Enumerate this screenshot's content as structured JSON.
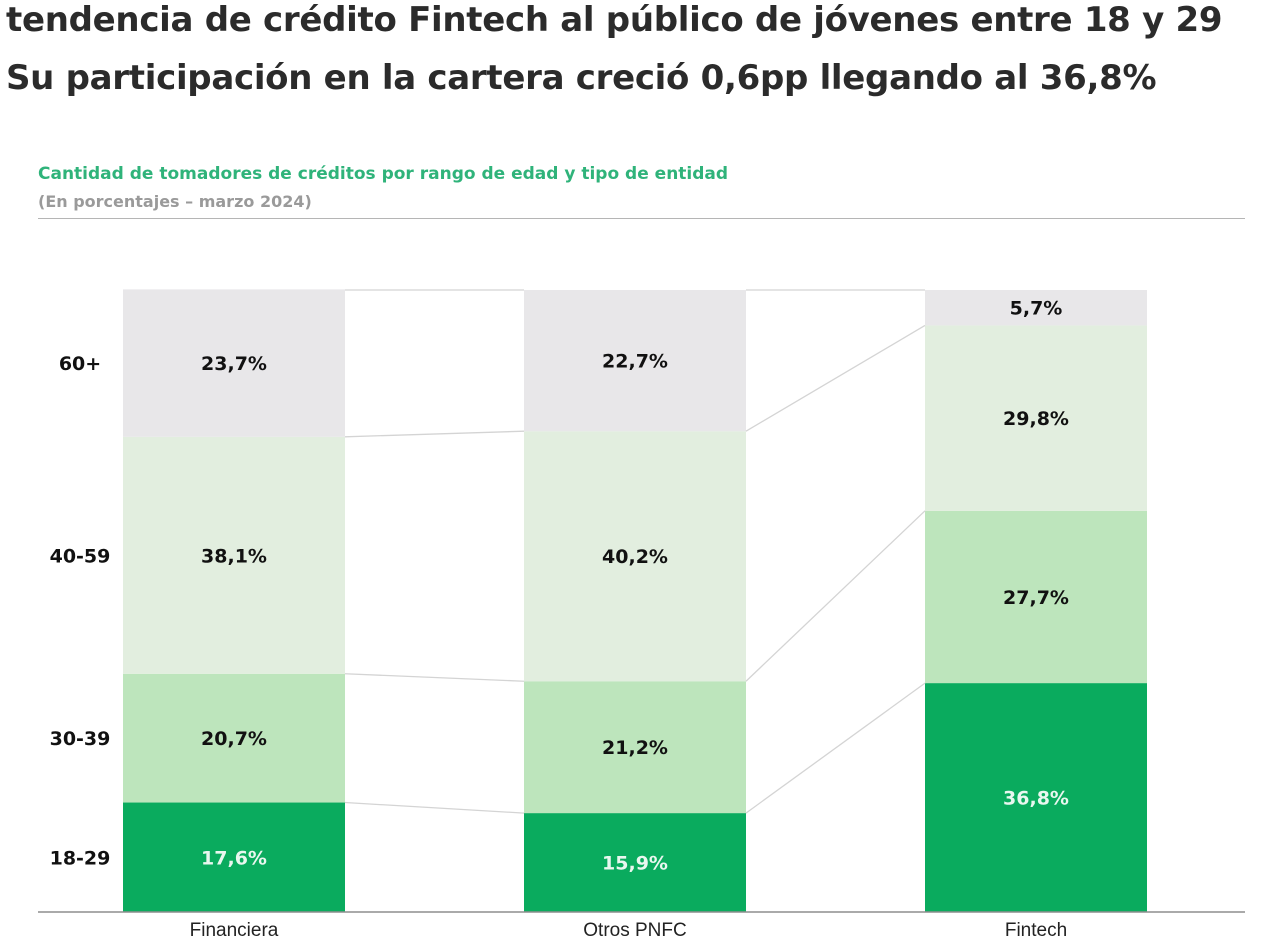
{
  "headline": {
    "line1": "tendencia de crédito Fintech al público de jóvenes entre 18 y 29",
    "line2": "Su participación en la cartera creció 0,6pp llegando al 36,8%"
  },
  "chart_data": {
    "type": "bar",
    "stacked": true,
    "title": "Cantidad de tomadores de créditos por rango de edad y tipo de entidad",
    "subtitle": "(En porcentajes – marzo 2024)",
    "categories": [
      "Financiera",
      "Otros PNFC",
      "Fintech"
    ],
    "series": [
      {
        "name": "18-29",
        "values": [
          17.6,
          15.9,
          36.8
        ],
        "labels": [
          "17,6%",
          "15,9%",
          "36,8%"
        ],
        "color": "#0aab5e",
        "label_color": "#e9f7ef"
      },
      {
        "name": "30-39",
        "values": [
          20.7,
          21.2,
          27.7
        ],
        "labels": [
          "20,7%",
          "21,2%",
          "27,7%"
        ],
        "color": "#bde5bc",
        "label_color": "#111111"
      },
      {
        "name": "40-59",
        "values": [
          38.1,
          40.2,
          29.8
        ],
        "labels": [
          "38,1%",
          "40,2%",
          "29,8%"
        ],
        "color": "#e2eedf",
        "label_color": "#111111"
      },
      {
        "name": "60+",
        "values": [
          23.7,
          22.7,
          5.7
        ],
        "labels": [
          "23,7%",
          "22,7%",
          "5,7%"
        ],
        "color": "#e8e7e9",
        "label_color": "#111111"
      }
    ],
    "ylim": [
      0,
      100
    ],
    "grid": false,
    "legend": "left"
  }
}
